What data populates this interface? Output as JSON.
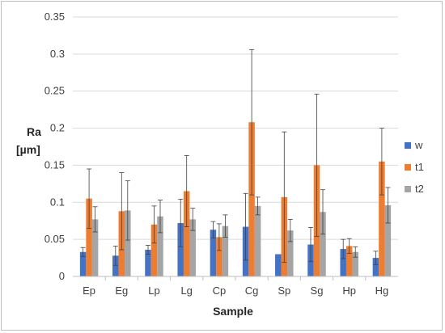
{
  "chart_data": {
    "type": "bar",
    "xlabel": "Sample",
    "ylabel_line1": "Ra",
    "ylabel_line2": "[µm]",
    "ylim": [
      0,
      0.35
    ],
    "yticks": [
      "0",
      "0.05",
      "0.1",
      "0.15",
      "0.2",
      "0.25",
      "0.3",
      "0.35"
    ],
    "ytick_values": [
      0,
      0.05,
      0.1,
      0.15,
      0.2,
      0.25,
      0.3,
      0.35
    ],
    "grid": true,
    "legend_position": "right",
    "categories": [
      "Ep",
      "Eg",
      "Lp",
      "Lg",
      "Cp",
      "Cg",
      "Sp",
      "Sg",
      "Hp",
      "Hg"
    ],
    "series": [
      {
        "name": "w",
        "color": "#4472c4",
        "values": [
          0.033,
          0.028,
          0.036,
          0.072,
          0.063,
          0.067,
          0.03,
          0.043,
          0.037,
          0.025
        ],
        "errors": [
          0.006,
          0.013,
          0.006,
          0.032,
          0.011,
          0.045,
          0.0,
          0.023,
          0.013,
          0.009
        ]
      },
      {
        "name": "t1",
        "color": "#ed7d31",
        "values": [
          0.105,
          0.088,
          0.07,
          0.115,
          0.053,
          0.208,
          0.107,
          0.15,
          0.041,
          0.155
        ],
        "errors": [
          0.04,
          0.052,
          0.025,
          0.048,
          0.018,
          0.098,
          0.088,
          0.096,
          0.01,
          0.045
        ]
      },
      {
        "name": "t2",
        "color": "#a5a5a5",
        "values": [
          0.077,
          0.089,
          0.081,
          0.077,
          0.068,
          0.095,
          0.062,
          0.087,
          0.033,
          0.096
        ],
        "errors": [
          0.017,
          0.04,
          0.022,
          0.015,
          0.015,
          0.012,
          0.015,
          0.03,
          0.007,
          0.024
        ]
      }
    ]
  }
}
